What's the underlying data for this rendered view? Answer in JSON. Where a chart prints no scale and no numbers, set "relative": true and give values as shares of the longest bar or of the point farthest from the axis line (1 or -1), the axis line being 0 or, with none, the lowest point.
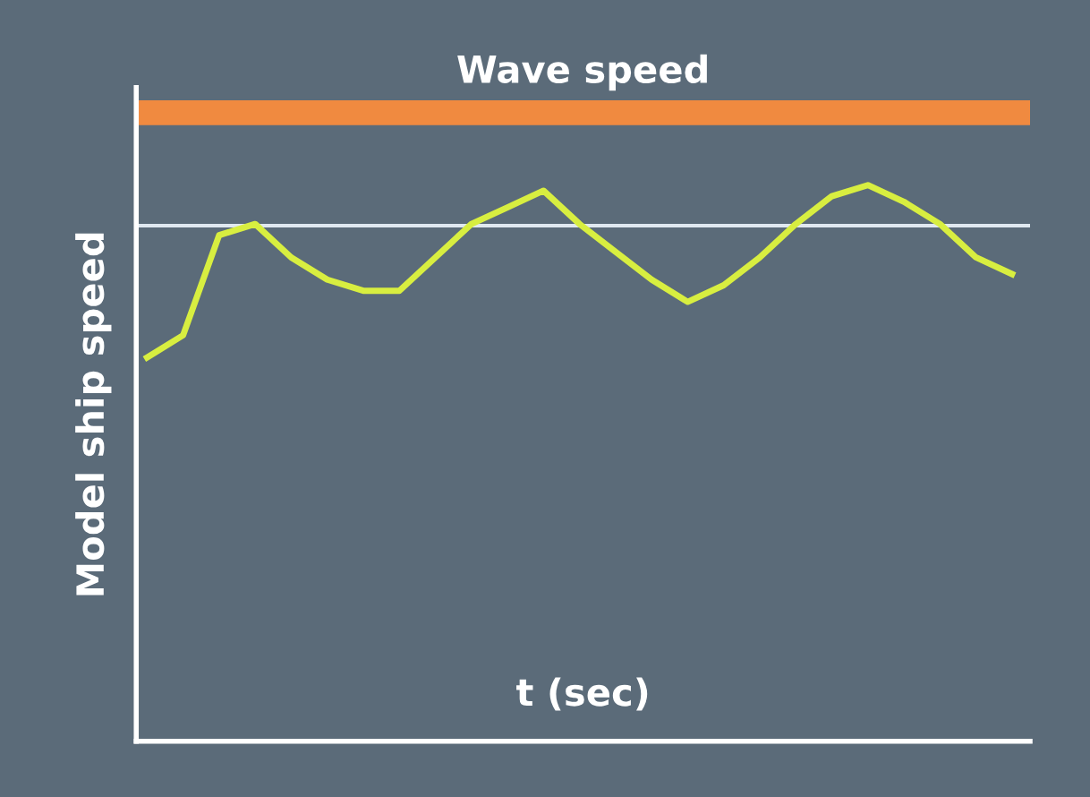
{
  "chart_data": {
    "type": "line",
    "relative": true,
    "xlabel": "t (sec)",
    "ylabel": "Model ship speed",
    "categories": [
      null,
      null,
      null,
      null,
      null,
      null,
      null,
      null,
      null,
      null,
      null,
      null,
      null,
      null,
      null,
      null,
      null,
      null,
      null,
      null,
      null,
      null,
      null,
      null,
      null
    ],
    "series": [
      {
        "color": "#d8ee40",
        "values": [
          0.69,
          0.73,
          0.91,
          0.93,
          0.87,
          0.83,
          0.81,
          0.81,
          0.87,
          0.93,
          0.96,
          0.99,
          0.93,
          0.88,
          0.83,
          0.79,
          0.82,
          0.87,
          0.93,
          0.98,
          1.0,
          0.97,
          0.93,
          0.87,
          0.84
        ]
      }
    ],
    "ref_lines": [
      {
        "axis": "y",
        "value": 1.13,
        "label": "Wave speed",
        "color": "#f08a40"
      },
      {
        "axis": "y",
        "value": 0.927,
        "color": "#e0e8f0"
      }
    ],
    "legend": false,
    "marker": "none",
    "line_style": "solid"
  }
}
